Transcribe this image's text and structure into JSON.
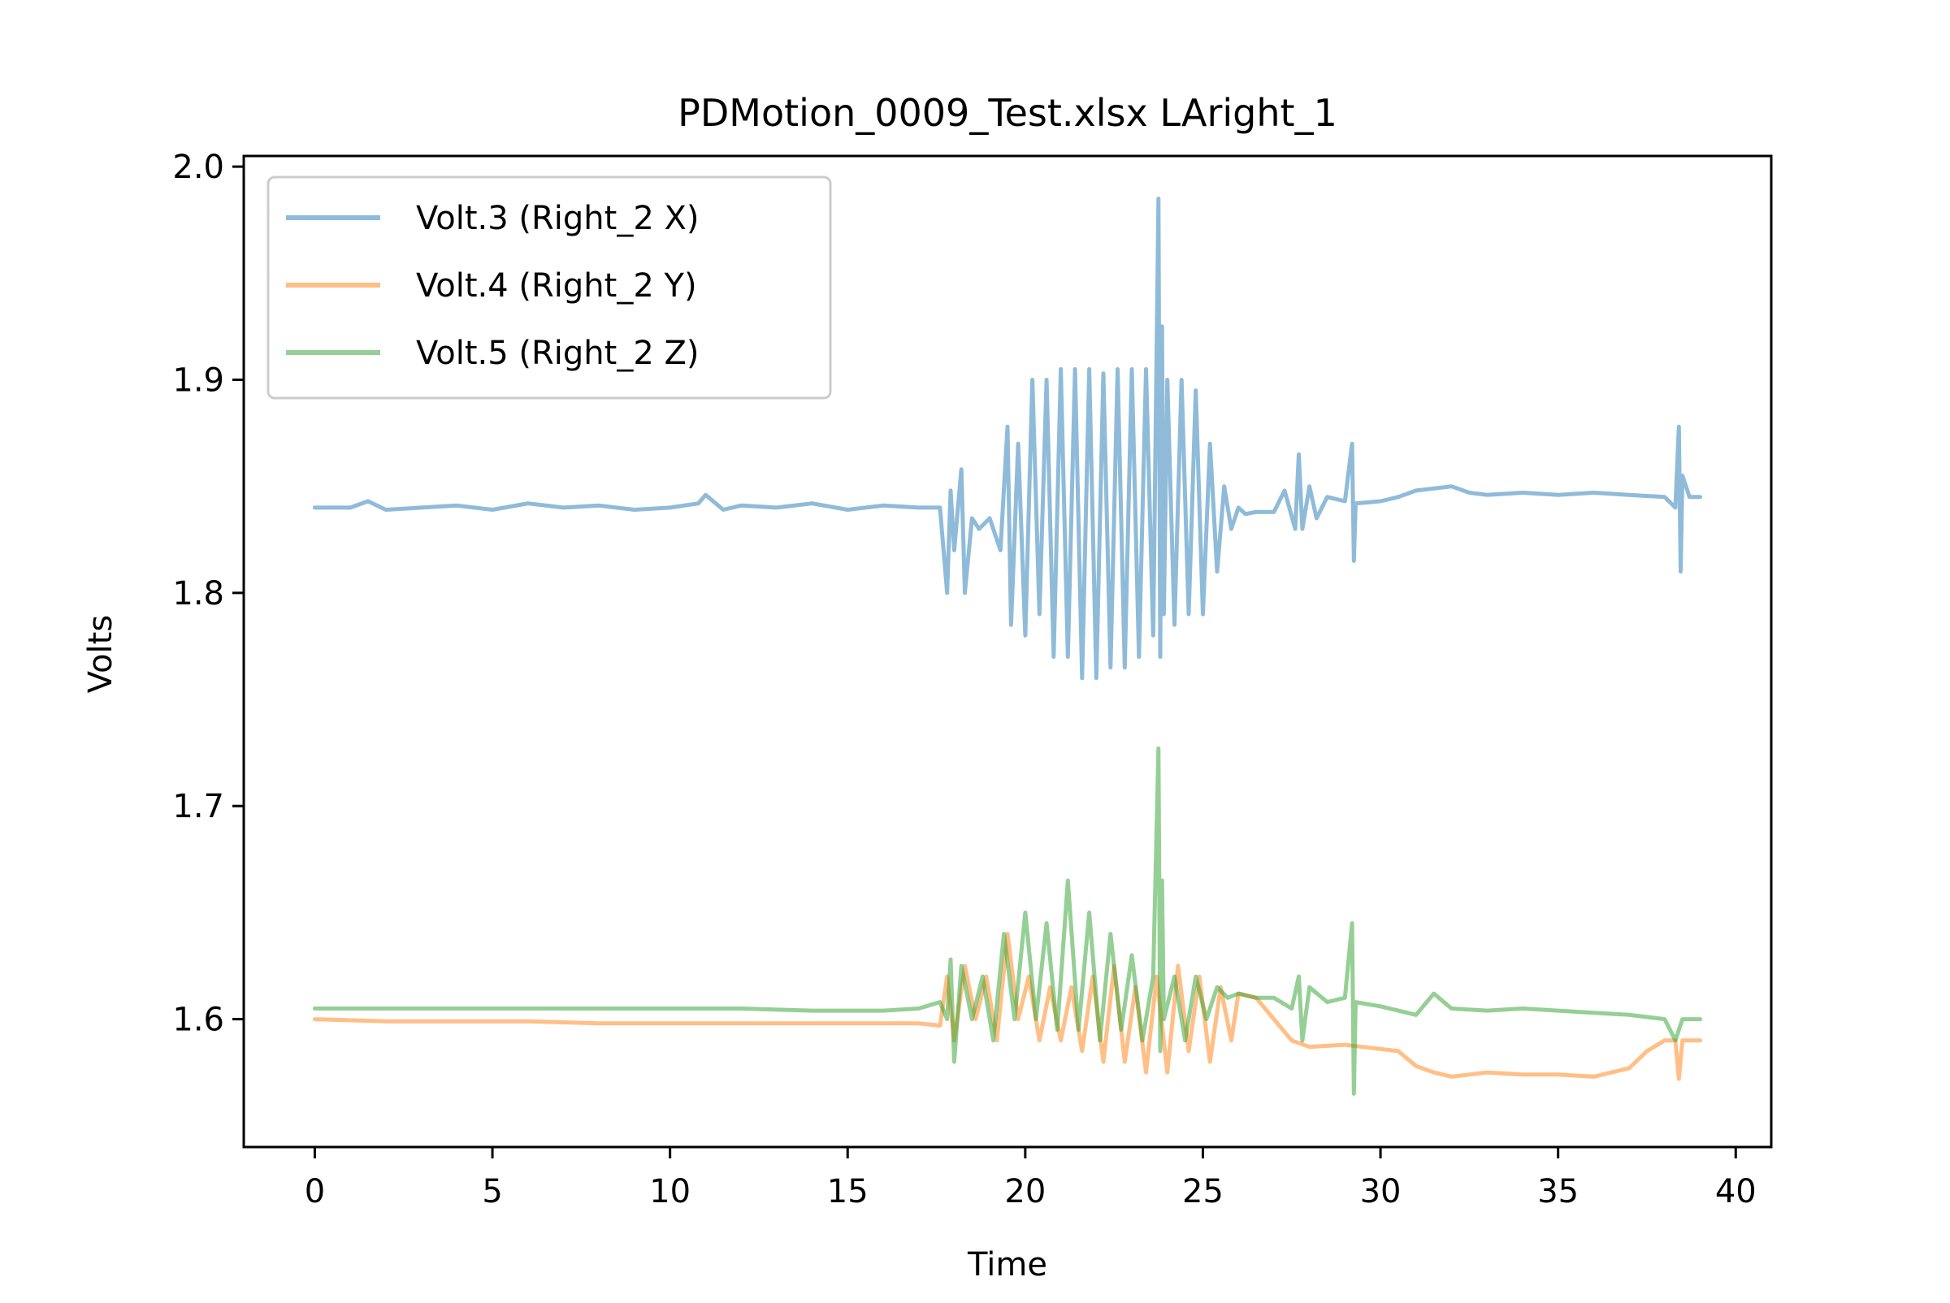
{
  "chart_data": {
    "type": "line",
    "title": "PDMotion_0009_Test.xlsx LAright_1",
    "xlabel": "Time",
    "ylabel": "Volts",
    "xlim": [
      -2,
      41
    ],
    "ylim": [
      1.54,
      2.005
    ],
    "xticks": [
      0,
      5,
      10,
      15,
      20,
      25,
      30,
      35,
      40
    ],
    "yticks": [
      1.6,
      1.7,
      1.8,
      1.9,
      2.0
    ],
    "ytick_labels": [
      "1.6",
      "1.7",
      "1.8",
      "1.9",
      "2.0"
    ],
    "legend_position": "upper-left",
    "grid": false,
    "series": [
      {
        "name": "Volt.3 (Right_2 X)",
        "color": "#1f77b4",
        "alpha": 0.5,
        "x": [
          0,
          1,
          1.5,
          2,
          3,
          4,
          5,
          6,
          7,
          8,
          9,
          10,
          10.8,
          11,
          11.5,
          12,
          13,
          14,
          15,
          16,
          17,
          17.6,
          17.8,
          17.9,
          18.0,
          18.2,
          18.3,
          18.5,
          18.7,
          19.0,
          19.3,
          19.5,
          19.6,
          19.8,
          20.0,
          20.2,
          20.4,
          20.6,
          20.8,
          21.0,
          21.2,
          21.4,
          21.6,
          21.8,
          22.0,
          22.2,
          22.4,
          22.6,
          22.8,
          23.0,
          23.2,
          23.4,
          23.6,
          23.75,
          23.8,
          23.85,
          23.9,
          24.0,
          24.2,
          24.4,
          24.6,
          24.8,
          25.0,
          25.2,
          25.4,
          25.6,
          25.8,
          26.0,
          26.2,
          26.5,
          27.0,
          27.3,
          27.6,
          27.7,
          27.8,
          28.0,
          28.2,
          28.5,
          29.0,
          29.2,
          29.25,
          29.3,
          30.0,
          30.5,
          31.0,
          31.5,
          32.0,
          32.5,
          33.0,
          34.0,
          35.0,
          36.0,
          37.0,
          38.0,
          38.3,
          38.4,
          38.45,
          38.5,
          38.7,
          39.0
        ],
        "y": [
          1.84,
          1.84,
          1.843,
          1.839,
          1.84,
          1.841,
          1.839,
          1.842,
          1.84,
          1.841,
          1.839,
          1.84,
          1.842,
          1.846,
          1.839,
          1.841,
          1.84,
          1.842,
          1.839,
          1.841,
          1.84,
          1.84,
          1.8,
          1.848,
          1.82,
          1.858,
          1.8,
          1.835,
          1.83,
          1.835,
          1.82,
          1.878,
          1.785,
          1.87,
          1.78,
          1.9,
          1.79,
          1.9,
          1.77,
          1.905,
          1.77,
          1.905,
          1.76,
          1.905,
          1.76,
          1.903,
          1.765,
          1.905,
          1.765,
          1.905,
          1.77,
          1.905,
          1.78,
          1.985,
          1.77,
          1.925,
          1.79,
          1.9,
          1.785,
          1.9,
          1.79,
          1.895,
          1.79,
          1.87,
          1.81,
          1.85,
          1.83,
          1.84,
          1.837,
          1.838,
          1.838,
          1.848,
          1.83,
          1.865,
          1.83,
          1.85,
          1.835,
          1.845,
          1.843,
          1.87,
          1.815,
          1.842,
          1.843,
          1.845,
          1.848,
          1.849,
          1.85,
          1.847,
          1.846,
          1.847,
          1.846,
          1.847,
          1.846,
          1.845,
          1.84,
          1.878,
          1.81,
          1.855,
          1.845,
          1.845
        ]
      },
      {
        "name": "Volt.4 (Right_2 Y)",
        "color": "#ff7f0e",
        "alpha": 0.5,
        "x": [
          0,
          2,
          4,
          6,
          8,
          10,
          12,
          14,
          16,
          17,
          17.6,
          17.8,
          18.0,
          18.3,
          18.6,
          18.9,
          19.2,
          19.5,
          19.8,
          20.1,
          20.4,
          20.7,
          21.0,
          21.3,
          21.6,
          21.9,
          22.2,
          22.5,
          22.8,
          23.1,
          23.4,
          23.7,
          24.0,
          24.3,
          24.6,
          24.9,
          25.2,
          25.5,
          25.8,
          26.0,
          26.5,
          27.0,
          27.5,
          28.0,
          29.0,
          30.0,
          30.5,
          31.0,
          31.5,
          32.0,
          32.5,
          33.0,
          34.0,
          35.0,
          36.0,
          36.5,
          37.0,
          37.5,
          38.0,
          38.3,
          38.4,
          38.5,
          39.0
        ],
        "y": [
          1.6,
          1.599,
          1.599,
          1.599,
          1.598,
          1.598,
          1.598,
          1.598,
          1.598,
          1.598,
          1.597,
          1.62,
          1.59,
          1.625,
          1.6,
          1.62,
          1.59,
          1.64,
          1.6,
          1.62,
          1.59,
          1.615,
          1.59,
          1.615,
          1.585,
          1.62,
          1.58,
          1.625,
          1.58,
          1.615,
          1.575,
          1.62,
          1.575,
          1.625,
          1.585,
          1.62,
          1.58,
          1.615,
          1.59,
          1.612,
          1.61,
          1.6,
          1.59,
          1.587,
          1.588,
          1.586,
          1.585,
          1.578,
          1.575,
          1.573,
          1.574,
          1.575,
          1.574,
          1.574,
          1.573,
          1.575,
          1.577,
          1.585,
          1.59,
          1.59,
          1.572,
          1.59,
          1.59
        ]
      },
      {
        "name": "Volt.5 (Right_2 Z)",
        "color": "#2ca02c",
        "alpha": 0.5,
        "x": [
          0,
          2,
          4,
          6,
          8,
          10,
          12,
          14,
          16,
          17,
          17.6,
          17.8,
          17.9,
          18.0,
          18.2,
          18.5,
          18.8,
          19.1,
          19.4,
          19.7,
          20.0,
          20.3,
          20.6,
          20.9,
          21.2,
          21.5,
          21.8,
          22.1,
          22.4,
          22.7,
          23.0,
          23.3,
          23.6,
          23.75,
          23.8,
          23.85,
          23.9,
          24.2,
          24.5,
          24.8,
          25.1,
          25.4,
          25.7,
          26.0,
          26.5,
          27.0,
          27.5,
          27.7,
          27.8,
          28.0,
          28.5,
          29.0,
          29.2,
          29.25,
          29.3,
          30.0,
          31.0,
          31.5,
          32.0,
          33.0,
          34.0,
          35.0,
          36.0,
          37.0,
          38.0,
          38.3,
          38.5,
          39.0
        ],
        "y": [
          1.605,
          1.605,
          1.605,
          1.605,
          1.605,
          1.605,
          1.605,
          1.604,
          1.604,
          1.605,
          1.608,
          1.6,
          1.628,
          1.58,
          1.625,
          1.6,
          1.62,
          1.59,
          1.64,
          1.6,
          1.65,
          1.6,
          1.645,
          1.595,
          1.665,
          1.595,
          1.65,
          1.59,
          1.64,
          1.595,
          1.63,
          1.59,
          1.62,
          1.727,
          1.585,
          1.665,
          1.6,
          1.62,
          1.59,
          1.62,
          1.6,
          1.615,
          1.61,
          1.612,
          1.61,
          1.61,
          1.605,
          1.62,
          1.59,
          1.615,
          1.608,
          1.61,
          1.645,
          1.565,
          1.608,
          1.606,
          1.602,
          1.612,
          1.605,
          1.604,
          1.605,
          1.604,
          1.603,
          1.602,
          1.6,
          1.59,
          1.6,
          1.6
        ]
      }
    ]
  }
}
